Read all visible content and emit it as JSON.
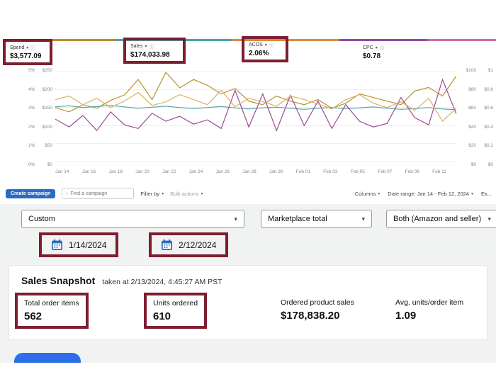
{
  "ads": {
    "metrics": [
      {
        "label": "Spend",
        "value": "$3,577.09"
      },
      {
        "label": "Sales",
        "value": "$174,033.98"
      },
      {
        "label": "ACOS",
        "value": "2.06%"
      },
      {
        "label": "CPC",
        "value": "$0.78"
      }
    ],
    "toolbar": {
      "create_campaign": "Create campaign",
      "search_placeholder": "Find a campaign",
      "filter_by": "Filter by",
      "bulk_actions": "Bulk actions",
      "columns": "Columns",
      "date_range": "Date range: Jan 14 - Feb 12, 2024",
      "export_partial": "Ex..."
    }
  },
  "chart_data": {
    "type": "line",
    "x_ticks": [
      "Jan 14",
      "Jan 16",
      "Jan 18",
      "Jan 20",
      "Jan 22",
      "Jan 24",
      "Jan 26",
      "Jan 28",
      "Jan 30",
      "Feb 01",
      "Feb 03",
      "Feb 05",
      "Feb 07",
      "Feb 09",
      "Feb 11"
    ],
    "left_axis_pct": [
      "5%",
      "4%",
      "3%",
      "2%",
      "1%",
      "0%"
    ],
    "left_axis_usd": [
      "$250",
      "$200",
      "$150",
      "$100",
      "$50",
      "$0"
    ],
    "right_axis_usd": [
      "$100",
      "$80",
      "$60",
      "$40",
      "$20",
      "$0"
    ],
    "right_axis_cpc": [
      "$1",
      "$0.8",
      "$0.6",
      "$0.4",
      "$0.2",
      "$0"
    ],
    "ylim": [
      0,
      250
    ],
    "grid": true,
    "series": [
      {
        "name": "Spend",
        "color": "#b8922a",
        "values": [
          150,
          138,
          158,
          148,
          170,
          185,
          228,
          172,
          248,
          205,
          228,
          212,
          188,
          203,
          168,
          158,
          182,
          168,
          158,
          172,
          148,
          162,
          188,
          178,
          168,
          158,
          196,
          206,
          182,
          238
        ]
      },
      {
        "name": "Sales",
        "color": "#55a0ab",
        "values": [
          152,
          155,
          150,
          153,
          156,
          152,
          148,
          151,
          154,
          150,
          147,
          150,
          153,
          149,
          146,
          149,
          151,
          148,
          145,
          148,
          150,
          147,
          149,
          152,
          148,
          145,
          147,
          150,
          146,
          144
        ]
      },
      {
        "name": "ACOS",
        "color": "#9c4a96",
        "values": [
          118,
          96,
          128,
          86,
          138,
          102,
          92,
          134,
          112,
          126,
          104,
          116,
          92,
          198,
          96,
          188,
          86,
          184,
          100,
          168,
          92,
          158,
          112,
          96,
          106,
          178,
          122,
          102,
          228,
          132
        ]
      },
      {
        "name": "CPC",
        "color": "#d6b460",
        "values": [
          172,
          182,
          158,
          176,
          150,
          168,
          192,
          156,
          166,
          186,
          172,
          158,
          198,
          152,
          176,
          166,
          154,
          182,
          172,
          160,
          146,
          172,
          186,
          162,
          150,
          166,
          142,
          176,
          112,
          148
        ]
      }
    ]
  },
  "filters": {
    "preset": "Custom",
    "marketplace": "Marketplace total",
    "channel": "Both (Amazon and seller)",
    "start_date": "1/14/2024",
    "end_date": "2/12/2024"
  },
  "snapshot": {
    "title": "Sales Snapshot",
    "taken_at": "taken at 2/13/2024, 4:45:27 AM PST",
    "stats": [
      {
        "label": "Total order items",
        "value": "562"
      },
      {
        "label": "Units ordered",
        "value": "610"
      },
      {
        "label": "Ordered product sales",
        "value": "$178,838.20"
      },
      {
        "label": "Avg. units/order item",
        "value": "1.09"
      }
    ]
  },
  "icons": {
    "chevron_down": "▾",
    "info": "ⓘ"
  },
  "colors": {
    "highlight_box": "#7e1e2f",
    "accent_blue": "#2b6bc3",
    "panel_bg": "#f1f2f2",
    "partial_button_blue": "#2e6fe8"
  }
}
